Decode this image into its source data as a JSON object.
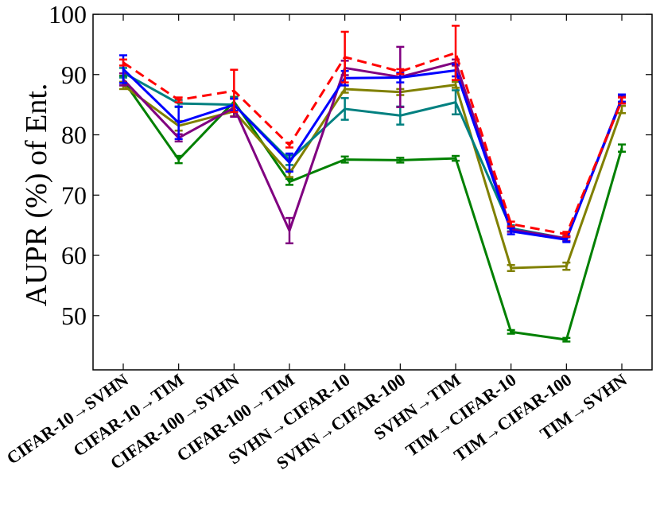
{
  "chart_data": {
    "type": "line",
    "title": "",
    "xlabel": "",
    "ylabel": "AUPR (%) of Ent.",
    "ylim": [
      41,
      100
    ],
    "yticks": [
      50,
      60,
      70,
      80,
      90,
      100
    ],
    "grid": false,
    "legend": "none",
    "categories": [
      "CIFAR-10→SVHN",
      "CIFAR-10→TIM",
      "CIFAR-100→SVHN",
      "CIFAR-100→TIM",
      "SVHN→CIFAR-10",
      "SVHN→CIFAR-100",
      "SVHN→TIM",
      "TIM→CIFAR-10",
      "TIM→CIFAR-100",
      "TIM→SVHN"
    ],
    "series": [
      {
        "color": "#008000",
        "dashed": false,
        "values": [
          89.0,
          75.9,
          85.5,
          72.2,
          75.9,
          75.8,
          76.1,
          47.3,
          46.0,
          77.8
        ],
        "errors": [
          0.8,
          0.6,
          0.8,
          0.5,
          0.5,
          0.4,
          0.4,
          0.3,
          0.3,
          0.6
        ]
      },
      {
        "color": "#808000",
        "dashed": false,
        "values": [
          88.2,
          81.5,
          83.9,
          73.6,
          87.6,
          87.1,
          88.3,
          57.9,
          58.2,
          84.2
        ],
        "errors": [
          0.6,
          0.8,
          0.8,
          0.6,
          0.6,
          0.5,
          0.5,
          0.5,
          0.6,
          0.6
        ]
      },
      {
        "color": "#008080",
        "dashed": false,
        "values": [
          90.3,
          85.2,
          85.0,
          75.8,
          84.3,
          83.2,
          85.4,
          64.5,
          62.8,
          85.8
        ],
        "errors": [
          0.8,
          0.6,
          1.2,
          0.8,
          1.8,
          1.5,
          2.0,
          0.5,
          0.4,
          0.6
        ]
      },
      {
        "color": "#800080",
        "dashed": false,
        "values": [
          89.2,
          79.5,
          84.5,
          64.1,
          91.1,
          89.6,
          92.0,
          64.3,
          62.8,
          85.8
        ],
        "errors": [
          1.0,
          0.6,
          1.5,
          2.1,
          1.2,
          5.0,
          0.5,
          0.4,
          0.4,
          0.6
        ]
      },
      {
        "color": "#0000ff",
        "dashed": false,
        "values": [
          90.9,
          82.0,
          85.0,
          75.4,
          89.4,
          89.5,
          90.7,
          64.0,
          62.6,
          86.1
        ],
        "errors": [
          2.3,
          2.7,
          1.0,
          1.5,
          1.2,
          0.8,
          1.0,
          0.5,
          0.4,
          0.6
        ]
      },
      {
        "color": "#ff0000",
        "dashed": true,
        "values": [
          92.0,
          85.8,
          87.3,
          78.3,
          92.9,
          90.5,
          93.6,
          65.2,
          63.5,
          85.7
        ],
        "errors": [
          0.5,
          0.4,
          3.5,
          0.4,
          4.2,
          0.4,
          4.5,
          0.4,
          0.4,
          0.5
        ]
      }
    ]
  }
}
